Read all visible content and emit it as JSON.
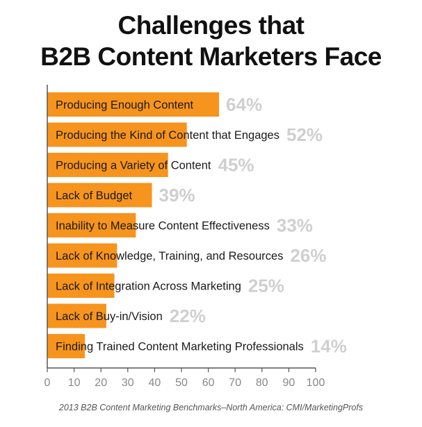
{
  "title_line1": "Challenges that",
  "title_line2": "B2B Content Marketers Face",
  "source": "2013 B2B Content Marketing Benchmarks–North America: CMI/MarketingProfs",
  "colors": {
    "bar": "#F7941D",
    "bar_label": "#1a1a1a",
    "value_label": "#cfcfcf",
    "axis": "#555555",
    "tick_label": "#888888"
  },
  "chart_data": {
    "type": "bar",
    "orientation": "horizontal",
    "categories": [
      "Producing Enough Content",
      "Producing the Kind of Content that Engages",
      "Producing a Variety of Content",
      "Lack of Budget",
      "Inability to Measure Content Effectiveness",
      "Lack of Knowledge, Training, and Resources",
      "Lack of Integration Across Marketing",
      "Lack of Buy-in/Vision",
      "Finding Trained Content Marketing Professionals"
    ],
    "values": [
      64,
      52,
      45,
      39,
      33,
      26,
      25,
      22,
      14
    ],
    "value_labels": [
      "64%",
      "52%",
      "45%",
      "39%",
      "33%",
      "26%",
      "25%",
      "22%",
      "14%"
    ],
    "xlim": [
      0,
      100
    ],
    "xticks": [
      0,
      10,
      20,
      30,
      40,
      50,
      60,
      70,
      80,
      90,
      100
    ],
    "grid": false,
    "legend": "none"
  }
}
